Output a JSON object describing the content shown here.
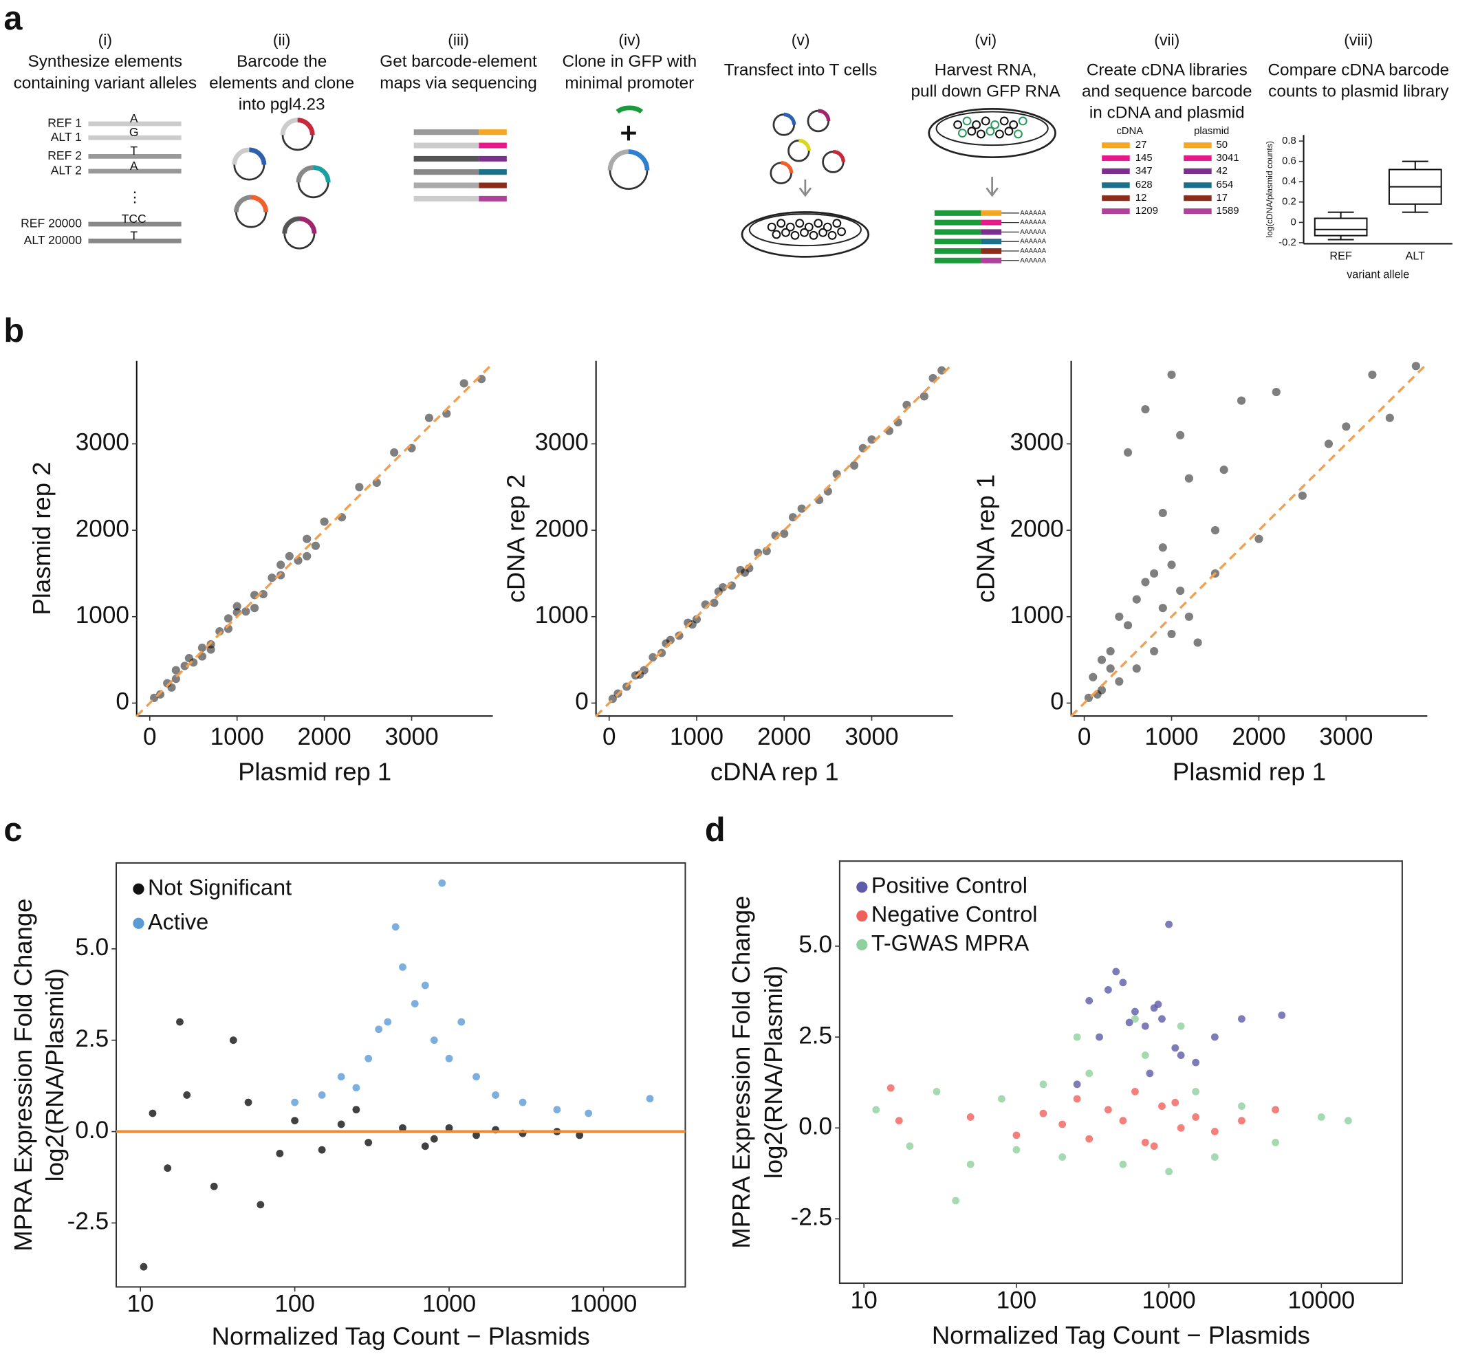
{
  "figure": {
    "panel_labels": [
      "a",
      "b",
      "c",
      "d"
    ],
    "steps": [
      {
        "number": "(i)",
        "lines": [
          "Synthesize elements",
          "containing variant alleles"
        ]
      },
      {
        "number": "(ii)",
        "lines": [
          "Barcode the",
          "elements and clone",
          "into pgl4.23"
        ]
      },
      {
        "number": "(iii)",
        "lines": [
          "Get barcode-element",
          "maps via sequencing"
        ]
      },
      {
        "number": "(iv)",
        "lines": [
          "Clone in GFP with",
          "minimal promoter"
        ]
      },
      {
        "number": "(v)",
        "lines": [
          "Transfect into T cells"
        ]
      },
      {
        "number": "(vi)",
        "lines": [
          "Harvest RNA,",
          "pull down GFP RNA"
        ]
      },
      {
        "number": "(vii)",
        "lines": [
          "Create cDNA libraries",
          "and sequence barcode",
          "in cDNA and plasmid"
        ]
      },
      {
        "number": "(viii)",
        "lines": [
          "Compare cDNA barcode",
          "counts to plasmid library"
        ]
      }
    ],
    "elements": {
      "labels": [
        "REF 1",
        "ALT 1",
        "REF 2",
        "ALT 2",
        "REF 20000",
        "ALT 20000"
      ],
      "alleles": [
        "A",
        "G",
        "T",
        "A",
        "TCC",
        "T"
      ],
      "ellipsis": "⋮"
    },
    "barcode_counts": {
      "headers": [
        "cDNA",
        "plasmid"
      ],
      "colors": [
        "#f5a623",
        "#e6198a",
        "#7b2f8f",
        "#1a6f8a",
        "#8b2d1a",
        "#b0419a"
      ],
      "cdna": [
        27,
        145,
        347,
        628,
        12,
        1209
      ],
      "plasmid": [
        50,
        3041,
        42,
        654,
        17,
        1589
      ]
    },
    "poly_a": [
      "AAAAAA",
      "AAAAAA",
      "AAAAAA",
      "AAAAAA",
      "AAAAAA",
      "AAAAAA"
    ]
  },
  "chart_data": [
    {
      "type": "box",
      "ylabel": "log(cDNA/plasmid counts)",
      "xlabel": "variant allele",
      "categories": [
        "REF",
        "ALT"
      ],
      "ylim": [
        -0.21,
        0.86
      ],
      "yticks": [
        -0.2,
        0,
        0.2,
        0.4,
        0.6,
        0.8
      ],
      "boxes": [
        {
          "low": -0.17,
          "q1": -0.13,
          "median": -0.07,
          "q3": 0.04,
          "high": 0.1
        },
        {
          "low": 0.1,
          "q1": 0.18,
          "median": 0.35,
          "q3": 0.52,
          "high": 0.6
        }
      ]
    },
    {
      "type": "scatter",
      "xlabel": "Plasmid rep 1",
      "ylabel": "Plasmid rep 2",
      "xlim": [
        -150,
        3930
      ],
      "ylim": [
        -150,
        3960
      ],
      "xticks": [
        0,
        1000,
        2000,
        3000
      ],
      "yticks": [
        0,
        1000,
        2000,
        3000
      ],
      "diagonal": true,
      "diagonal_color": "#f0a050",
      "series": [
        {
          "color": "#000000",
          "x": [
            50,
            120,
            200,
            300,
            400,
            500,
            600,
            700,
            800,
            900,
            1000,
            1100,
            1200,
            1300,
            1400,
            1500,
            1600,
            1700,
            1800,
            1900,
            2000,
            2200,
            2400,
            2600,
            2800,
            3000,
            3200,
            3400,
            3600,
            3800,
            300,
            600,
            900,
            1200,
            1500,
            250,
            450,
            700,
            1000,
            1800
          ],
          "y": [
            60,
            100,
            230,
            280,
            430,
            470,
            640,
            680,
            830,
            860,
            1050,
            1060,
            1250,
            1260,
            1450,
            1480,
            1700,
            1650,
            1900,
            1820,
            2100,
            2150,
            2500,
            2550,
            2900,
            2950,
            3300,
            3350,
            3700,
            3750,
            380,
            540,
            980,
            1100,
            1600,
            180,
            520,
            620,
            1120,
            1700
          ]
        }
      ]
    },
    {
      "type": "scatter",
      "xlabel": "cDNA rep 1",
      "ylabel": "cDNA rep 2",
      "xlim": [
        -150,
        3930
      ],
      "ylim": [
        -150,
        3960
      ],
      "xticks": [
        0,
        1000,
        2000,
        3000
      ],
      "yticks": [
        0,
        1000,
        2000,
        3000
      ],
      "diagonal": true,
      "diagonal_color": "#f0a050",
      "series": [
        {
          "color": "#000000",
          "x": [
            40,
            100,
            200,
            300,
            400,
            500,
            600,
            700,
            800,
            900,
            1000,
            1100,
            1200,
            1300,
            1400,
            1500,
            1600,
            1700,
            1800,
            1900,
            2000,
            2200,
            2400,
            2600,
            2800,
            3000,
            3200,
            3400,
            3600,
            3800,
            350,
            650,
            950,
            1250,
            1550,
            2100,
            2500,
            2900,
            3300,
            3700
          ],
          "y": [
            50,
            110,
            190,
            320,
            380,
            530,
            580,
            730,
            780,
            930,
            970,
            1140,
            1160,
            1340,
            1360,
            1540,
            1560,
            1740,
            1760,
            1940,
            1960,
            2250,
            2350,
            2650,
            2750,
            3050,
            3150,
            3450,
            3550,
            3850,
            330,
            690,
            910,
            1290,
            1510,
            2150,
            2450,
            2950,
            3250,
            3760
          ]
        }
      ]
    },
    {
      "type": "scatter",
      "xlabel": "Plasmid rep 1",
      "ylabel": "cDNA rep 1",
      "xlim": [
        -150,
        3930
      ],
      "ylim": [
        -150,
        3960
      ],
      "xticks": [
        0,
        1000,
        2000,
        3000
      ],
      "yticks": [
        0,
        1000,
        2000,
        3000
      ],
      "diagonal": true,
      "diagonal_color": "#f0a050",
      "series": [
        {
          "color": "#000000",
          "x": [
            100,
            200,
            300,
            400,
            500,
            600,
            700,
            800,
            900,
            1000,
            1200,
            1500,
            1800,
            2000,
            2500,
            3000,
            3500,
            3800,
            200,
            400,
            600,
            800,
            1000,
            1200,
            1500,
            500,
            700,
            900,
            1100,
            1300,
            300,
            1600,
            2200,
            2800,
            3300,
            900,
            1000,
            1100,
            150,
            50
          ],
          "y": [
            300,
            150,
            600,
            250,
            900,
            400,
            1400,
            600,
            1800,
            800,
            2600,
            1500,
            3500,
            1900,
            2400,
            3200,
            3300,
            3900,
            500,
            1000,
            1200,
            1500,
            3800,
            1000,
            2000,
            2900,
            3400,
            1100,
            1300,
            700,
            400,
            2700,
            3600,
            3000,
            3800,
            2200,
            1600,
            3100,
            100,
            60
          ]
        }
      ]
    },
    {
      "type": "scatter",
      "xscale": "log",
      "border": true,
      "legend": "top-left",
      "xlabel": "Normalized Tag Count − Plasmids",
      "ylabel": [
        "MPRA Expression Fold Change",
        "log2(RNA/Plasmid)"
      ],
      "xlim": [
        6.97,
        33900
      ],
      "ylim": [
        -4.25,
        7.35
      ],
      "xticks": [
        10,
        100,
        1000,
        10000
      ],
      "yticks": [
        {
          "value": 5,
          "label": "5.0"
        },
        {
          "value": 2.5,
          "label": "2.5"
        },
        {
          "value": 0,
          "label": "0.0"
        },
        -2.5
      ],
      "hline": 0,
      "hline_color": "#f08a30",
      "series": [
        {
          "name": "Not Significant",
          "color": "#111111",
          "x": [
            12,
            15,
            20,
            30,
            50,
            80,
            100,
            150,
            200,
            300,
            500,
            800,
            1000,
            1500,
            2000,
            3000,
            5000,
            7000,
            10.5,
            18,
            40,
            60,
            250,
            700
          ],
          "y": [
            0.5,
            -1,
            1,
            -1.5,
            0.8,
            -0.6,
            0.3,
            -0.5,
            0.2,
            -0.3,
            0.1,
            -0.2,
            0.1,
            -0.1,
            0.05,
            -0.05,
            0,
            -0.1,
            -3.7,
            3,
            2.5,
            -2,
            0.6,
            -0.4
          ]
        },
        {
          "name": "Active",
          "color": "#5b9bd5",
          "x": [
            100,
            150,
            200,
            300,
            400,
            500,
            600,
            800,
            1000,
            1500,
            2000,
            3000,
            5000,
            8000,
            450,
            700,
            1200,
            350,
            250,
            900,
            20000
          ],
          "y": [
            0.8,
            1,
            1.5,
            2,
            3,
            4.5,
            3.5,
            2.5,
            2,
            1.5,
            1,
            0.8,
            0.6,
            0.5,
            5.6,
            4,
            3,
            2.8,
            1.2,
            6.8,
            0.9
          ]
        }
      ]
    },
    {
      "type": "scatter",
      "xscale": "log",
      "border": true,
      "legend": "top-left",
      "xlabel": "Normalized Tag Count − Plasmids",
      "ylabel": [
        "MPRA Expression Fold Change",
        "log2(RNA/Plasmid)"
      ],
      "xlim": [
        6.93,
        33900
      ],
      "ylim": [
        -4.27,
        7.34
      ],
      "xticks": [
        10,
        100,
        1000,
        10000
      ],
      "yticks": [
        {
          "value": 5,
          "label": "5.0"
        },
        {
          "value": 2.5,
          "label": "2.5"
        },
        {
          "value": 0,
          "label": "0.0"
        },
        -2.5
      ],
      "draw_order": [
        2,
        1,
        0
      ],
      "series": [
        {
          "name": "Positive Control",
          "color": "#5e5aa8",
          "x": [
            300,
            400,
            500,
            600,
            700,
            800,
            900,
            1000,
            1200,
            1500,
            2000,
            3000,
            5500,
            350,
            450,
            550,
            750,
            850,
            1100,
            250
          ],
          "y": [
            3.5,
            3.8,
            4,
            3.2,
            2.8,
            3.3,
            3,
            5.6,
            2,
            1.8,
            2.5,
            3,
            3.1,
            2.5,
            4.3,
            2.9,
            1.5,
            3.4,
            2.2,
            1.2
          ]
        },
        {
          "name": "Negative Control",
          "color": "#f0605a",
          "x": [
            17,
            50,
            100,
            150,
            200,
            300,
            400,
            500,
            700,
            900,
            1200,
            1500,
            2000,
            3000,
            5000,
            250,
            600,
            800,
            1100,
            15
          ],
          "y": [
            0.2,
            0.3,
            -0.2,
            0.4,
            0.1,
            -0.3,
            0.5,
            0.2,
            -0.4,
            0.6,
            0,
            0.3,
            -0.1,
            0.2,
            0.5,
            0.8,
            1,
            -0.5,
            0.7,
            1.1
          ]
        },
        {
          "name": "T-GWAS MPRA",
          "color": "#8fd19e",
          "x": [
            12,
            20,
            30,
            50,
            80,
            100,
            150,
            200,
            300,
            500,
            700,
            1000,
            1500,
            2000,
            3000,
            5000,
            10000,
            15000,
            40,
            250,
            600,
            1200
          ],
          "y": [
            0.5,
            -0.5,
            1,
            -1,
            0.8,
            -0.6,
            1.2,
            -0.8,
            1.5,
            -1,
            2,
            -1.2,
            1,
            -0.8,
            0.6,
            -0.4,
            0.3,
            0.2,
            -2,
            2.5,
            3,
            2.8
          ]
        }
      ]
    }
  ]
}
